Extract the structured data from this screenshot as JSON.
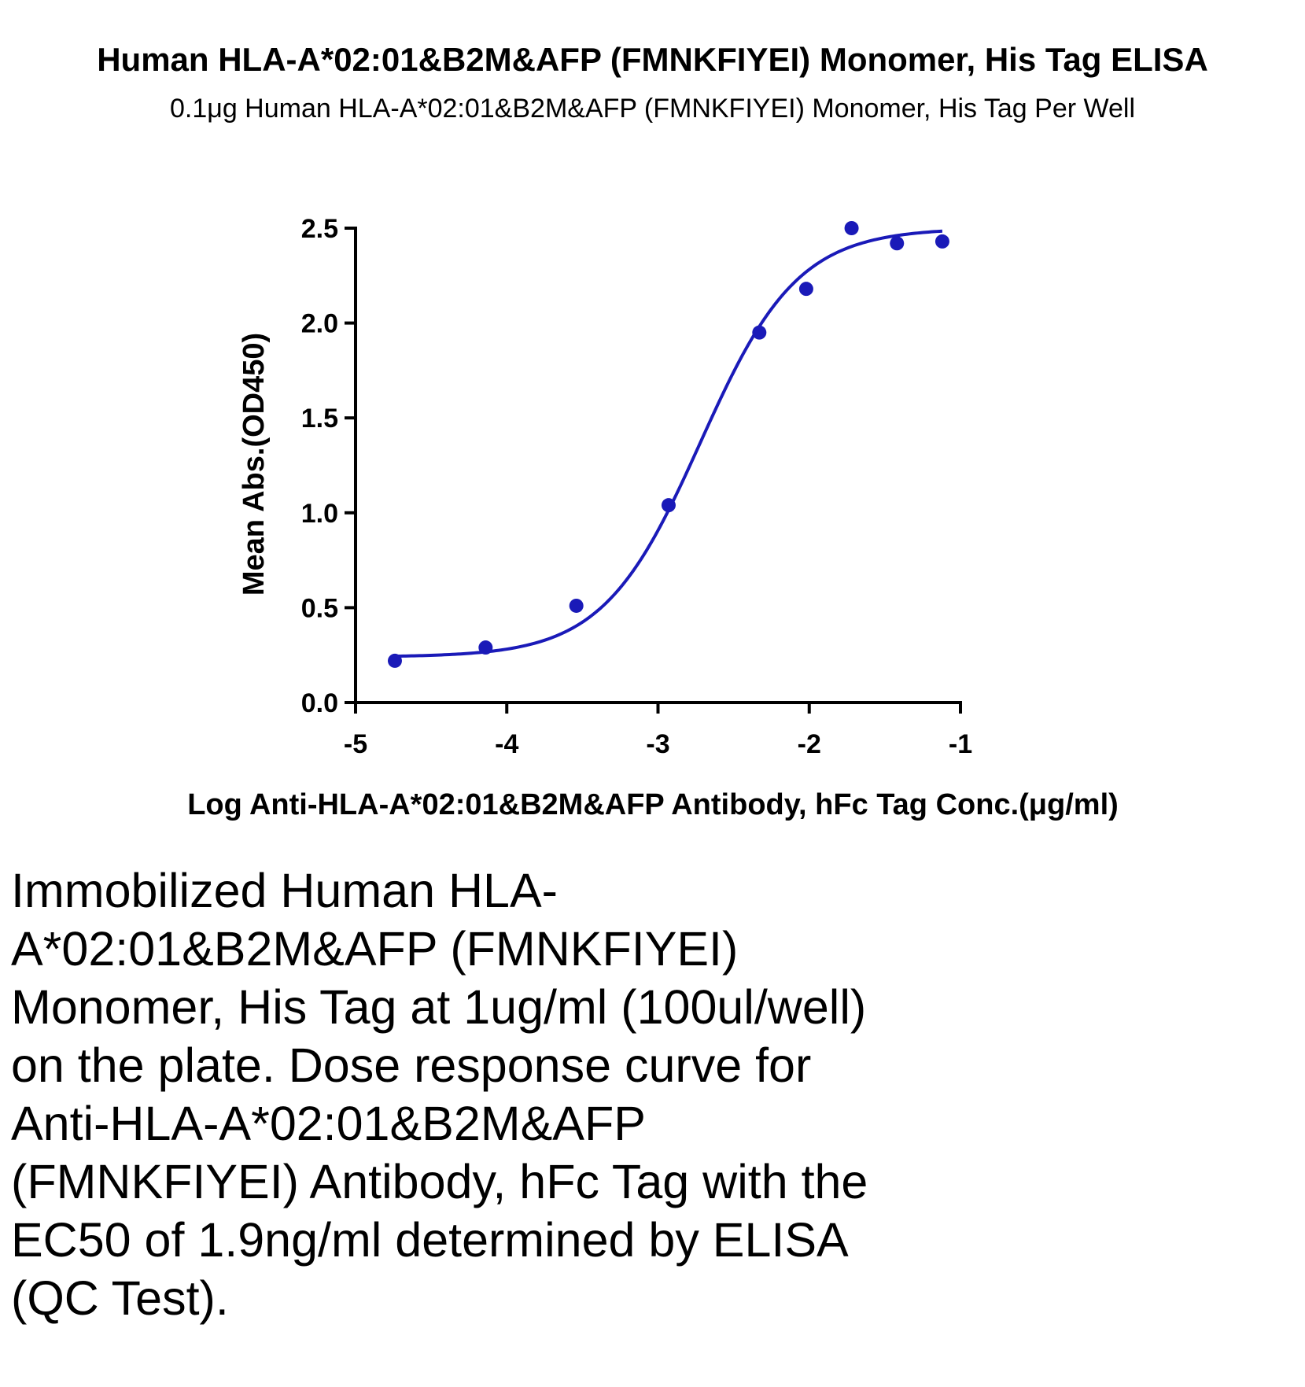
{
  "chart_data": {
    "type": "scatter",
    "title": "Human HLA-A*02:01&B2M&AFP (FMNKFIYEI) Monomer, His Tag ELISA",
    "subtitle": "0.1μg Human HLA-A*02:01&B2M&AFP (FMNKFIYEI) Monomer, His Tag Per Well",
    "xlabel": "Log Anti-HLA-A*02:01&B2M&AFP Antibody, hFc  Tag Conc.(μg/ml)",
    "ylabel": "Mean Abs.(OD450)",
    "xlim": [
      -5,
      -1
    ],
    "ylim": [
      0,
      2.5
    ],
    "x_ticks": [
      -5,
      -4,
      -3,
      -2,
      -1
    ],
    "x_tick_labels": [
      "-5",
      "-4",
      "-3",
      "-2",
      "-1"
    ],
    "y_ticks": [
      0,
      0.5,
      1,
      1.5,
      2,
      2.5
    ],
    "y_tick_labels": [
      "0.0",
      "0.5",
      "1.0",
      "1.5",
      "2.0",
      "2.5"
    ],
    "grid": false,
    "color": "#1a1ab8",
    "series": [
      {
        "points": [
          {
            "x": -4.74,
            "y": 0.22
          },
          {
            "x": -4.14,
            "y": 0.29
          },
          {
            "x": -3.54,
            "y": 0.51
          },
          {
            "x": -2.93,
            "y": 1.04
          },
          {
            "x": -2.33,
            "y": 1.95
          },
          {
            "x": -2.02,
            "y": 2.18
          },
          {
            "x": -1.72,
            "y": 2.5
          },
          {
            "x": -1.42,
            "y": 2.42
          },
          {
            "x": -1.12,
            "y": 2.43
          }
        ],
        "fit": {
          "model": "four-parameter logistic",
          "bottom": 0.24,
          "top": 2.5,
          "log_ec50": -2.72,
          "hill_slope": 1.35,
          "x_range": [
            -4.74,
            -1.12
          ]
        }
      }
    ]
  },
  "caption": "Immobilized Human HLA-A*02:01&B2M&AFP (FMNKFIYEI) Monomer, His Tag at 1ug/ml (100ul/well) on the plate. Dose response curve for Anti-HLA-A*02:01&B2M&AFP (FMNKFIYEI) Antibody, hFc Tag with the EC50 of 1.9ng/ml determined by ELISA (QC Test)."
}
